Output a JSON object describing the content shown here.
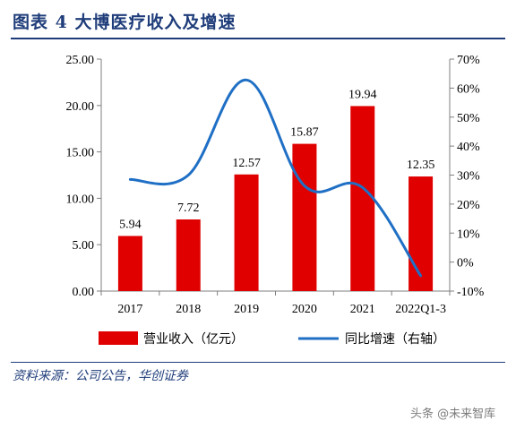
{
  "figure": {
    "title": "图表 4   大博医疗收入及增速",
    "source": "资料来源：公司公告，华创证券",
    "watermark": "头条 @未来智库"
  },
  "chart_data": {
    "type": "bar+line",
    "categories": [
      "2017",
      "2018",
      "2019",
      "2020",
      "2021",
      "2022Q1-3"
    ],
    "series": [
      {
        "name": "营业收入（亿元）",
        "type": "bar",
        "axis": "left",
        "color": "#e00000",
        "values": [
          5.94,
          7.72,
          12.57,
          15.87,
          19.94,
          12.35
        ],
        "labels": [
          "5.94",
          "7.72",
          "12.57",
          "15.87",
          "19.94",
          "12.35"
        ]
      },
      {
        "name": "同比增速（右轴）",
        "type": "line",
        "axis": "right",
        "color": "#1f6fc5",
        "values": [
          28.5,
          30.0,
          62.8,
          26.3,
          25.7,
          -4.7
        ]
      }
    ],
    "y_left": {
      "ylim": [
        0,
        25
      ],
      "ticks": [
        0,
        5,
        10,
        15,
        20,
        25
      ],
      "tick_labels": [
        "0.00",
        "5.00",
        "10.00",
        "15.00",
        "20.00",
        "25.00"
      ]
    },
    "y_right": {
      "ylim": [
        -10,
        70
      ],
      "ticks": [
        -10,
        0,
        10,
        20,
        30,
        40,
        50,
        60,
        70
      ],
      "tick_labels": [
        "-10%",
        "0%",
        "10%",
        "20%",
        "30%",
        "40%",
        "50%",
        "60%",
        "70%"
      ]
    },
    "grid": false,
    "legend_position": "bottom"
  }
}
